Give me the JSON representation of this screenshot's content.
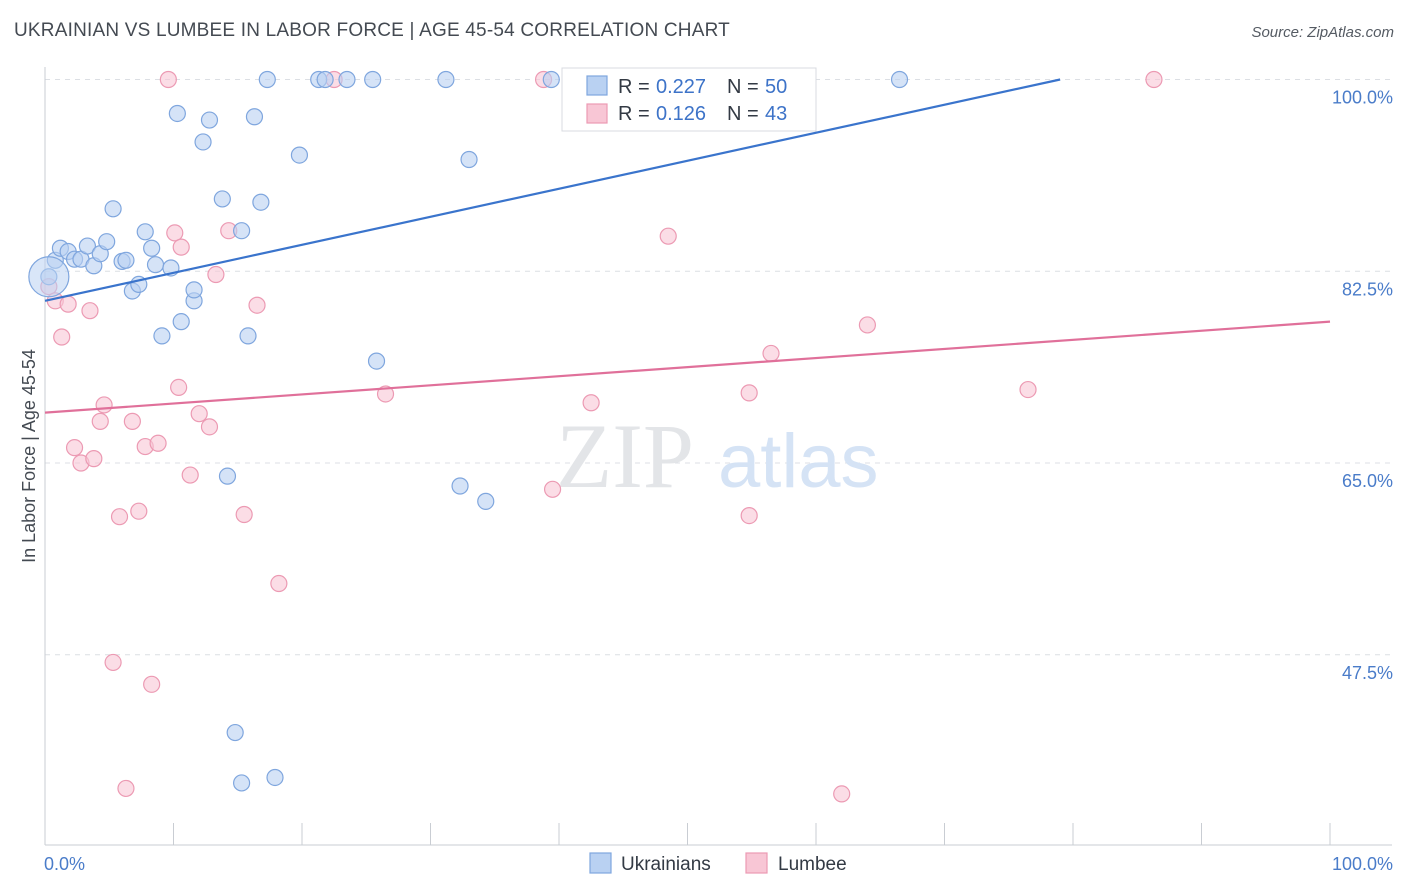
{
  "header": {
    "title": "UKRAINIAN VS LUMBEE IN LABOR FORCE | AGE 45-54 CORRELATION CHART",
    "source": "Source: ZipAtlas.com"
  },
  "watermark": {
    "zip": "ZIP",
    "atlas": "atlas"
  },
  "legend": {
    "r_label": "R =",
    "n_label": "N =",
    "entries": [
      {
        "r": "0.227",
        "n": "50"
      },
      {
        "r": "0.126",
        "n": "43"
      }
    ]
  },
  "colors": {
    "ukrainians_fill": "#b9d1f2",
    "ukrainians_stroke": "#7fa6de",
    "ukrainians_line": "#3a74cc",
    "lumbee_fill": "#f8c6d5",
    "lumbee_stroke": "#ec9ab3",
    "lumbee_line": "#e0709a",
    "tick_text": "#4a7cc9",
    "grid": "#dcdfe4"
  },
  "chart_data": {
    "type": "scatter",
    "title": "UKRAINIAN VS LUMBEE IN LABOR FORCE | AGE 45-54 CORRELATION CHART",
    "xlabel": "",
    "ylabel": "In Labor Force | Age 45-54",
    "xlim": [
      0,
      100
    ],
    "ylim": [
      32,
      100
    ],
    "x_tick_labels": [
      "0.0%",
      "100.0%"
    ],
    "y_ticks": [
      47.5,
      65.0,
      82.5,
      100.0
    ],
    "y_tick_labels": [
      "47.5%",
      "65.0%",
      "82.5%",
      "100.0%"
    ],
    "grid": true,
    "legend_position": "bottom",
    "series": [
      {
        "name": "Ukrainians",
        "r": 0.227,
        "n": 50,
        "trend": {
          "x0": 0,
          "y0": 79.8,
          "x1": 79,
          "y1": 100
        },
        "points": [
          [
            0.3,
            82.0
          ],
          [
            0.8,
            83.5
          ],
          [
            1.2,
            84.6
          ],
          [
            1.8,
            84.3
          ],
          [
            2.3,
            83.6
          ],
          [
            2.8,
            83.6
          ],
          [
            3.3,
            84.8
          ],
          [
            3.8,
            83.0
          ],
          [
            4.3,
            84.1
          ],
          [
            4.8,
            85.2
          ],
          [
            5.3,
            88.2
          ],
          [
            6.0,
            83.4
          ],
          [
            6.3,
            83.5
          ],
          [
            6.8,
            80.7
          ],
          [
            7.3,
            81.3
          ],
          [
            7.8,
            86.1
          ],
          [
            8.3,
            84.6
          ],
          [
            8.6,
            83.1
          ],
          [
            9.1,
            76.6
          ],
          [
            9.8,
            82.8
          ],
          [
            10.3,
            96.9
          ],
          [
            10.6,
            77.9
          ],
          [
            11.6,
            79.8
          ],
          [
            11.6,
            80.8
          ],
          [
            12.3,
            94.3
          ],
          [
            12.8,
            96.3
          ],
          [
            13.8,
            89.1
          ],
          [
            14.2,
            63.8
          ],
          [
            14.8,
            40.4
          ],
          [
            15.3,
            35.8
          ],
          [
            15.3,
            86.2
          ],
          [
            15.8,
            76.6
          ],
          [
            16.3,
            96.6
          ],
          [
            16.8,
            88.8
          ],
          [
            17.3,
            100.0
          ],
          [
            17.9,
            36.3
          ],
          [
            19.8,
            93.1
          ],
          [
            21.3,
            100.0
          ],
          [
            21.8,
            100.0
          ],
          [
            23.5,
            100.0
          ],
          [
            25.5,
            100.0
          ],
          [
            25.8,
            74.3
          ],
          [
            31.2,
            100.0
          ],
          [
            32.3,
            62.9
          ],
          [
            33.0,
            92.7
          ],
          [
            34.3,
            61.5
          ],
          [
            39.4,
            100.0
          ],
          [
            47.8,
            100.0
          ],
          [
            52.8,
            100.0
          ],
          [
            66.5,
            100.0
          ]
        ]
      },
      {
        "name": "Lumbee",
        "r": 0.126,
        "n": 43,
        "trend": {
          "x0": 0,
          "y0": 69.6,
          "x1": 100,
          "y1": 77.9
        },
        "points": [
          [
            0.3,
            81.1
          ],
          [
            0.8,
            79.8
          ],
          [
            1.3,
            76.5
          ],
          [
            1.8,
            79.5
          ],
          [
            2.3,
            66.4
          ],
          [
            2.8,
            65.0
          ],
          [
            3.5,
            78.9
          ],
          [
            3.8,
            65.4
          ],
          [
            4.3,
            68.8
          ],
          [
            4.6,
            70.3
          ],
          [
            5.3,
            46.8
          ],
          [
            5.8,
            60.1
          ],
          [
            6.3,
            35.3
          ],
          [
            6.8,
            68.8
          ],
          [
            7.3,
            60.6
          ],
          [
            7.8,
            66.5
          ],
          [
            8.3,
            44.8
          ],
          [
            8.8,
            66.8
          ],
          [
            9.6,
            100.0
          ],
          [
            10.1,
            86.0
          ],
          [
            10.4,
            71.9
          ],
          [
            10.6,
            84.7
          ],
          [
            11.3,
            63.9
          ],
          [
            12.0,
            69.5
          ],
          [
            12.8,
            68.3
          ],
          [
            13.3,
            82.2
          ],
          [
            14.3,
            86.2
          ],
          [
            15.5,
            60.3
          ],
          [
            16.5,
            79.4
          ],
          [
            18.2,
            54.0
          ],
          [
            22.5,
            100.0
          ],
          [
            26.5,
            71.3
          ],
          [
            38.8,
            100.0
          ],
          [
            39.5,
            62.6
          ],
          [
            42.5,
            70.5
          ],
          [
            48.5,
            85.7
          ],
          [
            54.8,
            60.2
          ],
          [
            54.8,
            71.4
          ],
          [
            56.5,
            75.0
          ],
          [
            62.0,
            34.8
          ],
          [
            64.0,
            77.6
          ],
          [
            76.5,
            71.7
          ],
          [
            86.3,
            100.0
          ]
        ]
      }
    ]
  }
}
